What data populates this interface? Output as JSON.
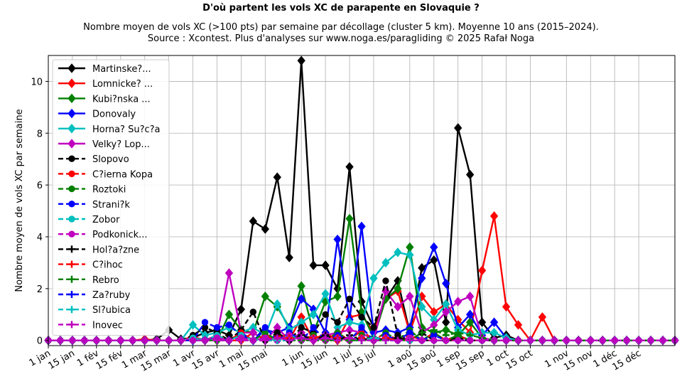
{
  "chart_data": {
    "type": "line",
    "title": "D'où partent les vols XC de parapente en Slovaquie ?",
    "subtitle": "Nombre moyen de vols XC (>100 pts) par semaine par décollage (cluster 5 km). Moyenne 10 ans (2015–2024).",
    "subtitle2": "Source : Xcontest. Plus d'analyses sur www.noga.es/paragliding © 2025 Rafał Noga",
    "ylabel": "Nombre moyen de vols XC par semaine",
    "xlabel": "",
    "xlim": [
      1,
      53
    ],
    "ylim": [
      -0.2,
      11
    ],
    "grid": true,
    "legend_position": "top-left",
    "x_ticks": [
      {
        "x": 1,
        "label": "1 jan"
      },
      {
        "x": 3,
        "label": "15 jan"
      },
      {
        "x": 5,
        "label": "1 fév"
      },
      {
        "x": 7,
        "label": "15 fév"
      },
      {
        "x": 9,
        "label": "1 mar"
      },
      {
        "x": 11,
        "label": "15 mar"
      },
      {
        "x": 13,
        "label": "1 avr"
      },
      {
        "x": 15,
        "label": "15 avr"
      },
      {
        "x": 17,
        "label": "1 mai"
      },
      {
        "x": 19,
        "label": "15 mai"
      },
      {
        "x": 22,
        "label": "1 jun"
      },
      {
        "x": 24,
        "label": "15 jun"
      },
      {
        "x": 26,
        "label": "1 jul"
      },
      {
        "x": 28,
        "label": "15 jul"
      },
      {
        "x": 31,
        "label": "1 aoû"
      },
      {
        "x": 33,
        "label": "15 aoû"
      },
      {
        "x": 35,
        "label": "1 sep"
      },
      {
        "x": 37,
        "label": "15 sep"
      },
      {
        "x": 39,
        "label": "1 oct"
      },
      {
        "x": 41,
        "label": "15 oct"
      },
      {
        "x": 44,
        "label": "1 nov"
      },
      {
        "x": 46,
        "label": "15 nov"
      },
      {
        "x": 48,
        "label": "1 déc"
      },
      {
        "x": 50,
        "label": "15 déc"
      }
    ],
    "y_ticks": [
      0,
      2,
      4,
      6,
      8,
      10
    ],
    "series": [
      {
        "name": "Martinske?...",
        "color": "#000000",
        "dash": "solid",
        "marker": "diamond",
        "points": [
          [
            10,
            0.05
          ],
          [
            11,
            0.4
          ],
          [
            12,
            0.05
          ],
          [
            13,
            0.1
          ],
          [
            14,
            0.3
          ],
          [
            15,
            0.4
          ],
          [
            16,
            0.2
          ],
          [
            17,
            1.2
          ],
          [
            18,
            4.6
          ],
          [
            19,
            4.3
          ],
          [
            20,
            6.3
          ],
          [
            21,
            3.2
          ],
          [
            22,
            10.8
          ],
          [
            23,
            2.9
          ],
          [
            24,
            2.9
          ],
          [
            25,
            2.0
          ],
          [
            26,
            6.7
          ],
          [
            27,
            1.5
          ],
          [
            28,
            0.5
          ],
          [
            29,
            1.6
          ],
          [
            30,
            2.3
          ],
          [
            31,
            0.3
          ],
          [
            32,
            2.8
          ],
          [
            33,
            3.1
          ],
          [
            34,
            0.7
          ],
          [
            35,
            8.2
          ],
          [
            36,
            6.4
          ],
          [
            37,
            0.7
          ],
          [
            38,
            0.1
          ],
          [
            39,
            0.2
          ]
        ]
      },
      {
        "name": "Lomnicke? ...",
        "color": "#ff0000",
        "dash": "solid",
        "marker": "diamond",
        "points": [
          [
            9,
            0.05
          ],
          [
            13,
            0.15
          ],
          [
            18,
            0.3
          ],
          [
            20,
            0.2
          ],
          [
            22,
            0.9
          ],
          [
            24,
            0.3
          ],
          [
            26,
            0.9
          ],
          [
            27,
            1.0
          ],
          [
            28,
            0.3
          ],
          [
            29,
            1.6
          ],
          [
            30,
            1.9
          ],
          [
            31,
            0.3
          ],
          [
            32,
            1.7
          ],
          [
            33,
            1.1
          ],
          [
            34,
            1.4
          ],
          [
            35,
            0.8
          ],
          [
            36,
            0.3
          ],
          [
            37,
            2.7
          ],
          [
            38,
            4.8
          ],
          [
            39,
            1.3
          ],
          [
            40,
            0.6
          ],
          [
            41,
            0.0
          ],
          [
            42,
            0.9
          ],
          [
            43,
            0.0
          ]
        ]
      },
      {
        "name": "Kubi?nska ...",
        "color": "#008000",
        "dash": "solid",
        "marker": "diamond",
        "points": [
          [
            16,
            1.0
          ],
          [
            17,
            0.4
          ],
          [
            18,
            0.3
          ],
          [
            19,
            1.7
          ],
          [
            20,
            1.3
          ],
          [
            21,
            0.5
          ],
          [
            22,
            2.1
          ],
          [
            23,
            0.3
          ],
          [
            24,
            1.5
          ],
          [
            25,
            1.7
          ],
          [
            26,
            4.7
          ],
          [
            27,
            1.1
          ],
          [
            28,
            0.1
          ],
          [
            29,
            1.6
          ],
          [
            30,
            2.0
          ],
          [
            31,
            3.6
          ],
          [
            32,
            0.5
          ],
          [
            33,
            0.3
          ],
          [
            34,
            0.4
          ],
          [
            35,
            0.2
          ],
          [
            36,
            0.7
          ],
          [
            37,
            0.1
          ]
        ]
      },
      {
        "name": "Donovaly",
        "color": "#0000ff",
        "dash": "solid",
        "marker": "diamond",
        "points": [
          [
            14,
            0.05
          ],
          [
            15,
            0.1
          ],
          [
            17,
            0.3
          ],
          [
            19,
            0.4
          ],
          [
            20,
            0.3
          ],
          [
            21,
            0.5
          ],
          [
            22,
            1.6
          ],
          [
            23,
            1.2
          ],
          [
            24,
            0.3
          ],
          [
            25,
            3.9
          ],
          [
            26,
            0.8
          ],
          [
            27,
            4.4
          ],
          [
            28,
            0.3
          ],
          [
            29,
            0.4
          ],
          [
            30,
            0.3
          ],
          [
            31,
            0.5
          ],
          [
            32,
            2.4
          ],
          [
            33,
            3.6
          ],
          [
            34,
            2.2
          ],
          [
            35,
            0.5
          ],
          [
            36,
            1.0
          ],
          [
            37,
            0.2
          ],
          [
            38,
            0.7
          ],
          [
            39,
            0.1
          ]
        ]
      },
      {
        "name": "Horna? Su?c?a",
        "color": "#00bfbf",
        "dash": "solid",
        "marker": "diamond",
        "points": [
          [
            13,
            0.6
          ],
          [
            14,
            0.2
          ],
          [
            15,
            0.3
          ],
          [
            16,
            0.5
          ],
          [
            17,
            0.3
          ],
          [
            18,
            0.5
          ],
          [
            19,
            0.2
          ],
          [
            20,
            1.4
          ],
          [
            21,
            0.4
          ],
          [
            22,
            0.7
          ],
          [
            23,
            1.0
          ],
          [
            24,
            1.8
          ],
          [
            25,
            0.5
          ],
          [
            26,
            0.7
          ],
          [
            27,
            0.6
          ],
          [
            28,
            2.4
          ],
          [
            29,
            3.0
          ],
          [
            30,
            3.4
          ],
          [
            31,
            3.3
          ],
          [
            32,
            1.3
          ],
          [
            33,
            0.8
          ],
          [
            34,
            1.4
          ],
          [
            35,
            0.4
          ],
          [
            36,
            0.2
          ],
          [
            37,
            0.3
          ],
          [
            38,
            0.3
          ],
          [
            39,
            0.1
          ]
        ]
      },
      {
        "name": "Velky? Lop...",
        "color": "#bf00bf",
        "dash": "solid",
        "marker": "diamond",
        "points": [
          [
            13,
            0.1
          ],
          [
            15,
            0.2
          ],
          [
            16,
            2.6
          ],
          [
            17,
            0.3
          ],
          [
            18,
            0.3
          ],
          [
            20,
            0.5
          ],
          [
            22,
            0.3
          ],
          [
            24,
            0.2
          ],
          [
            25,
            0.3
          ],
          [
            26,
            0.4
          ],
          [
            27,
            0.3
          ],
          [
            29,
            1.9
          ],
          [
            30,
            1.3
          ],
          [
            31,
            1.7
          ],
          [
            32,
            0.3
          ],
          [
            33,
            0.6
          ],
          [
            34,
            1.1
          ],
          [
            35,
            1.5
          ],
          [
            36,
            1.7
          ],
          [
            37,
            0.1
          ]
        ]
      },
      {
        "name": "Slopovo",
        "color": "#000000",
        "dash": "dashed",
        "marker": "circle",
        "points": [
          [
            13,
            0.2
          ],
          [
            14,
            0.5
          ],
          [
            15,
            0.3
          ],
          [
            17,
            0.4
          ],
          [
            18,
            1.1
          ],
          [
            20,
            0.3
          ],
          [
            22,
            0.5
          ],
          [
            23,
            0.3
          ],
          [
            24,
            1.0
          ],
          [
            25,
            0.7
          ],
          [
            26,
            1.6
          ],
          [
            27,
            0.9
          ],
          [
            28,
            0.5
          ],
          [
            29,
            2.3
          ],
          [
            30,
            0.2
          ],
          [
            32,
            0.3
          ],
          [
            35,
            0.1
          ]
        ]
      },
      {
        "name": "C?ierna Kopa",
        "color": "#ff0000",
        "dash": "dashed",
        "marker": "circle",
        "points": [
          [
            15,
            0.2
          ],
          [
            17,
            0.3
          ],
          [
            19,
            0.2
          ],
          [
            21,
            0.3
          ],
          [
            23,
            0.2
          ],
          [
            25,
            0.3
          ],
          [
            27,
            0.4
          ],
          [
            29,
            0.3
          ],
          [
            31,
            0.2
          ],
          [
            33,
            0.3
          ],
          [
            35,
            0.2
          ]
        ]
      },
      {
        "name": "Roztoki",
        "color": "#008000",
        "dash": "dashed",
        "marker": "circle",
        "points": [
          [
            15,
            0.1
          ],
          [
            17,
            0.2
          ],
          [
            19,
            0.3
          ],
          [
            21,
            0.2
          ],
          [
            23,
            0.2
          ],
          [
            25,
            0.3
          ],
          [
            27,
            0.2
          ],
          [
            29,
            0.3
          ],
          [
            31,
            0.4
          ],
          [
            33,
            0.3
          ],
          [
            35,
            0.2
          ]
        ]
      },
      {
        "name": "Strani?k",
        "color": "#0000ff",
        "dash": "dashed",
        "marker": "circle",
        "points": [
          [
            14,
            0.7
          ],
          [
            15,
            0.5
          ],
          [
            16,
            0.6
          ],
          [
            17,
            0.2
          ],
          [
            19,
            0.5
          ],
          [
            21,
            0.3
          ],
          [
            23,
            0.5
          ],
          [
            25,
            0.2
          ],
          [
            27,
            0.5
          ],
          [
            29,
            0.2
          ],
          [
            31,
            0.3
          ],
          [
            33,
            0.2
          ]
        ]
      },
      {
        "name": "Zobor",
        "color": "#00bfbf",
        "dash": "dashed",
        "marker": "circle",
        "points": [
          [
            13,
            0.1
          ],
          [
            15,
            0.2
          ],
          [
            17,
            0.2
          ],
          [
            19,
            0.1
          ],
          [
            21,
            0.2
          ],
          [
            23,
            0.1
          ],
          [
            25,
            0.1
          ],
          [
            27,
            0.1
          ],
          [
            29,
            0.1
          ]
        ]
      },
      {
        "name": "Podkonick...",
        "color": "#bf00bf",
        "dash": "dashed",
        "marker": "circle",
        "points": [
          [
            15,
            0.1
          ],
          [
            17,
            0.1
          ],
          [
            19,
            0.1
          ],
          [
            21,
            0.2
          ],
          [
            23,
            0.1
          ],
          [
            25,
            0.1
          ],
          [
            27,
            0.1
          ],
          [
            29,
            0.1
          ],
          [
            31,
            0.1
          ]
        ]
      },
      {
        "name": "Hol?a?zne",
        "color": "#000000",
        "dash": "dashed",
        "marker": "plus",
        "points": [
          [
            20,
            0.1
          ],
          [
            22,
            0.2
          ],
          [
            24,
            0.2
          ],
          [
            26,
            0.2
          ],
          [
            28,
            0.1
          ],
          [
            30,
            0.1
          ]
        ]
      },
      {
        "name": "C?ihoc",
        "color": "#ff0000",
        "dash": "dashed",
        "marker": "plus",
        "points": [
          [
            21,
            0.1
          ],
          [
            23,
            0.1
          ],
          [
            25,
            0.1
          ],
          [
            27,
            0.1
          ],
          [
            29,
            0.1
          ]
        ]
      },
      {
        "name": "Rebro",
        "color": "#008000",
        "dash": "dashed",
        "marker": "plus",
        "points": [
          [
            32,
            0.3
          ],
          [
            33,
            0.4
          ],
          [
            34,
            0.2
          ],
          [
            35,
            0.3
          ],
          [
            36,
            0.2
          ],
          [
            37,
            0.1
          ]
        ]
      },
      {
        "name": "Za?ruby",
        "color": "#0000ff",
        "dash": "dashed",
        "marker": "plus",
        "points": [
          [
            22,
            0.1
          ],
          [
            24,
            0.1
          ],
          [
            26,
            0.1
          ],
          [
            28,
            0.1
          ]
        ]
      },
      {
        "name": "Sl?ubica",
        "color": "#00bfbf",
        "dash": "dashed",
        "marker": "plus",
        "points": [
          [
            22,
            0.1
          ],
          [
            24,
            0.1
          ],
          [
            26,
            0.1
          ],
          [
            28,
            0.1
          ]
        ]
      },
      {
        "name": "Inovec",
        "color": "#bf00bf",
        "dash": "dashed",
        "marker": "plus",
        "points": [
          [
            20,
            0.1
          ],
          [
            22,
            0.1
          ],
          [
            24,
            0.1
          ],
          [
            26,
            0.1
          ]
        ]
      }
    ]
  }
}
